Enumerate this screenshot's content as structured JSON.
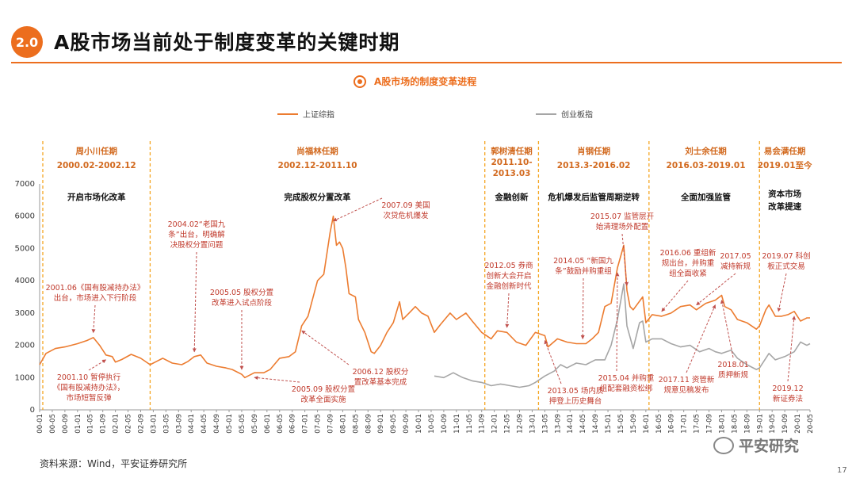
{
  "header": {
    "section_number": "2.0",
    "title": "A股市场当前处于制度变革的关键时期"
  },
  "subtitle": {
    "text": "A股市场的制度变革进程",
    "icon": "target-circle-icon"
  },
  "footer": {
    "source": "资料来源：Wind，平安证券研究所",
    "watermark": "平安研究",
    "watermark_icon": "wechat-icon",
    "page_number": "17"
  },
  "colors": {
    "accent": "#EC6E1E",
    "sse": "#EC7C30",
    "chinext": "#A6A6A6",
    "divider": "#F5A623"
  },
  "chart_data": {
    "type": "line",
    "ylim": [
      0,
      7000
    ],
    "yticks": [
      0,
      1000,
      2000,
      3000,
      4000,
      5000,
      6000,
      7000
    ],
    "x_range": [
      "2000-01",
      "2020-05"
    ],
    "xtick_labels": [
      "00-01",
      "00-05",
      "00-09",
      "01-01",
      "01-05",
      "01-09",
      "02-01",
      "02-05",
      "02-09",
      "03-01",
      "03-05",
      "03-09",
      "04-01",
      "04-05",
      "04-09",
      "05-01",
      "05-05",
      "05-09",
      "06-01",
      "06-05",
      "06-09",
      "07-01",
      "07-05",
      "07-09",
      "08-01",
      "08-05",
      "08-09",
      "09-01",
      "09-05",
      "09-09",
      "10-01",
      "10-05",
      "10-09",
      "11-01",
      "11-05",
      "11-09",
      "12-01",
      "12-05",
      "12-09",
      "13-01",
      "13-05",
      "13-09",
      "14-01",
      "14-05",
      "14-09",
      "15-01",
      "15-05",
      "15-09",
      "16-01",
      "16-05",
      "16-09",
      "17-01",
      "17-05",
      "17-09",
      "18-01",
      "18-05",
      "18-09",
      "19-01",
      "19-05",
      "19-09",
      "20-01",
      "20-05"
    ],
    "series": [
      {
        "name": "上证综指",
        "color": "#EC7C30",
        "points": [
          [
            "2000-01",
            1400
          ],
          [
            "2000-03",
            1750
          ],
          [
            "2000-06",
            1900
          ],
          [
            "2000-09",
            1950
          ],
          [
            "2001-01",
            2050
          ],
          [
            "2001-04",
            2150
          ],
          [
            "2001-06",
            2240
          ],
          [
            "2001-08",
            2000
          ],
          [
            "2001-10",
            1700
          ],
          [
            "2001-12",
            1650
          ],
          [
            "2002-01",
            1480
          ],
          [
            "2002-03",
            1560
          ],
          [
            "2002-06",
            1720
          ],
          [
            "2002-09",
            1600
          ],
          [
            "2002-12",
            1400
          ],
          [
            "2003-02",
            1500
          ],
          [
            "2003-04",
            1600
          ],
          [
            "2003-07",
            1450
          ],
          [
            "2003-10",
            1400
          ],
          [
            "2003-12",
            1500
          ],
          [
            "2004-02",
            1650
          ],
          [
            "2004-04",
            1700
          ],
          [
            "2004-06",
            1450
          ],
          [
            "2004-09",
            1350
          ],
          [
            "2004-12",
            1300
          ],
          [
            "2005-02",
            1250
          ],
          [
            "2005-05",
            1100
          ],
          [
            "2005-06",
            1000
          ],
          [
            "2005-09",
            1150
          ],
          [
            "2005-12",
            1150
          ],
          [
            "2006-02",
            1250
          ],
          [
            "2006-05",
            1600
          ],
          [
            "2006-08",
            1650
          ],
          [
            "2006-10",
            1800
          ],
          [
            "2006-12",
            2600
          ],
          [
            "2007-02",
            2900
          ],
          [
            "2007-05",
            4000
          ],
          [
            "2007-07",
            4200
          ],
          [
            "2007-09",
            5500
          ],
          [
            "2007-10",
            6000
          ],
          [
            "2007-11",
            5100
          ],
          [
            "2007-12",
            5200
          ],
          [
            "2008-01",
            5000
          ],
          [
            "2008-02",
            4400
          ],
          [
            "2008-03",
            3600
          ],
          [
            "2008-05",
            3500
          ],
          [
            "2008-06",
            2800
          ],
          [
            "2008-08",
            2400
          ],
          [
            "2008-10",
            1800
          ],
          [
            "2008-11",
            1750
          ],
          [
            "2009-01",
            2000
          ],
          [
            "2009-03",
            2400
          ],
          [
            "2009-05",
            2700
          ],
          [
            "2009-07",
            3350
          ],
          [
            "2009-08",
            2800
          ],
          [
            "2009-10",
            3000
          ],
          [
            "2009-12",
            3200
          ],
          [
            "2010-02",
            3000
          ],
          [
            "2010-04",
            2900
          ],
          [
            "2010-06",
            2400
          ],
          [
            "2010-08",
            2650
          ],
          [
            "2010-11",
            3000
          ],
          [
            "2011-01",
            2800
          ],
          [
            "2011-04",
            3000
          ],
          [
            "2011-06",
            2750
          ],
          [
            "2011-09",
            2400
          ],
          [
            "2011-12",
            2200
          ],
          [
            "2012-02",
            2450
          ],
          [
            "2012-05",
            2400
          ],
          [
            "2012-08",
            2100
          ],
          [
            "2012-11",
            2000
          ],
          [
            "2013-02",
            2400
          ],
          [
            "2013-05",
            2300
          ],
          [
            "2013-06",
            1950
          ],
          [
            "2013-09",
            2200
          ],
          [
            "2013-12",
            2100
          ],
          [
            "2014-03",
            2050
          ],
          [
            "2014-06",
            2050
          ],
          [
            "2014-08",
            2200
          ],
          [
            "2014-10",
            2400
          ],
          [
            "2014-12",
            3200
          ],
          [
            "2015-02",
            3300
          ],
          [
            "2015-04",
            4400
          ],
          [
            "2015-06",
            5100
          ],
          [
            "2015-07",
            3700
          ],
          [
            "2015-08",
            3200
          ],
          [
            "2015-09",
            3100
          ],
          [
            "2015-12",
            3500
          ],
          [
            "2016-01",
            2700
          ],
          [
            "2016-03",
            2950
          ],
          [
            "2016-06",
            2900
          ],
          [
            "2016-09",
            3000
          ],
          [
            "2016-12",
            3200
          ],
          [
            "2017-03",
            3250
          ],
          [
            "2017-05",
            3100
          ],
          [
            "2017-08",
            3300
          ],
          [
            "2017-11",
            3400
          ],
          [
            "2018-01",
            3550
          ],
          [
            "2018-02",
            3200
          ],
          [
            "2018-04",
            3100
          ],
          [
            "2018-06",
            2800
          ],
          [
            "2018-09",
            2700
          ],
          [
            "2018-12",
            2500
          ],
          [
            "2019-01",
            2600
          ],
          [
            "2019-03",
            3100
          ],
          [
            "2019-04",
            3250
          ],
          [
            "2019-06",
            2900
          ],
          [
            "2019-08",
            2900
          ],
          [
            "2019-10",
            2950
          ],
          [
            "2019-12",
            3050
          ],
          [
            "2020-02",
            2750
          ],
          [
            "2020-04",
            2850
          ],
          [
            "2020-05",
            2850
          ]
        ]
      },
      {
        "name": "创业板指",
        "color": "#A6A6A6",
        "points": [
          [
            "2010-06",
            1050
          ],
          [
            "2010-09",
            1000
          ],
          [
            "2010-12",
            1150
          ],
          [
            "2011-03",
            1000
          ],
          [
            "2011-06",
            900
          ],
          [
            "2011-09",
            850
          ],
          [
            "2011-12",
            750
          ],
          [
            "2012-03",
            800
          ],
          [
            "2012-06",
            750
          ],
          [
            "2012-09",
            700
          ],
          [
            "2012-12",
            750
          ],
          [
            "2013-02",
            850
          ],
          [
            "2013-05",
            1050
          ],
          [
            "2013-08",
            1200
          ],
          [
            "2013-10",
            1400
          ],
          [
            "2013-12",
            1300
          ],
          [
            "2014-03",
            1450
          ],
          [
            "2014-06",
            1400
          ],
          [
            "2014-09",
            1550
          ],
          [
            "2014-12",
            1550
          ],
          [
            "2015-02",
            2000
          ],
          [
            "2015-04",
            2800
          ],
          [
            "2015-06",
            3900
          ],
          [
            "2015-07",
            2600
          ],
          [
            "2015-09",
            1900
          ],
          [
            "2015-11",
            2700
          ],
          [
            "2015-12",
            2750
          ],
          [
            "2016-01",
            2100
          ],
          [
            "2016-03",
            2200
          ],
          [
            "2016-06",
            2200
          ],
          [
            "2016-09",
            2050
          ],
          [
            "2016-12",
            1950
          ],
          [
            "2017-03",
            2000
          ],
          [
            "2017-06",
            1800
          ],
          [
            "2017-09",
            1900
          ],
          [
            "2017-11",
            1800
          ],
          [
            "2018-01",
            1750
          ],
          [
            "2018-04",
            1850
          ],
          [
            "2018-06",
            1600
          ],
          [
            "2018-09",
            1400
          ],
          [
            "2018-12",
            1250
          ],
          [
            "2019-01",
            1300
          ],
          [
            "2019-04",
            1750
          ],
          [
            "2019-06",
            1550
          ],
          [
            "2019-09",
            1650
          ],
          [
            "2019-12",
            1800
          ],
          [
            "2020-02",
            2100
          ],
          [
            "2020-04",
            2000
          ],
          [
            "2020-05",
            2050
          ]
        ]
      }
    ],
    "eras": [
      {
        "start": "2000-02",
        "end": "2002-12",
        "chair": "周小川任期",
        "period": "2000.02-2002.12",
        "theme": "开启市场化改革"
      },
      {
        "start": "2002-12",
        "end": "2011-10",
        "chair": "尚福林任期",
        "period": "2002.12-2011.10",
        "theme": "完成股权分置改革"
      },
      {
        "start": "2011-10",
        "end": "2013-03",
        "chair": "郭树清任期",
        "period": "2011.10-2013.03",
        "theme": "金融创新"
      },
      {
        "start": "2013-03",
        "end": "2016-02",
        "chair": "肖钢任期",
        "period": "2013.3-2016.02",
        "theme": "危机爆发后监管周期逆转"
      },
      {
        "start": "2016-03",
        "end": "2019-01",
        "chair": "刘士余任期",
        "period": "2016.03-2019.01",
        "theme": "全面加强监管"
      },
      {
        "start": "2019-01",
        "end": "2020-05",
        "chair": "易会满任期",
        "period": "2019.01至今",
        "theme": "资本市场改革提速"
      }
    ],
    "annotations": [
      {
        "text": "2001.06《国有股减持办法》出台，市场进入下行阶段",
        "target": [
          "2001-06",
          2240
        ]
      },
      {
        "text": "2001.10 暂停执行《国有股减持办法》，市场短暂反弹",
        "target": [
          "2001-10",
          1700
        ]
      },
      {
        "text": "2004.02“老国九条”出台，明确解决股权分置问题",
        "target": [
          "2004-02",
          1650
        ]
      },
      {
        "text": "2005.05 股权分置改革进入试点阶段",
        "target": [
          "2005-05",
          1100
        ]
      },
      {
        "text": "2005.09 股权分置改革全面实施",
        "target": [
          "2005-09",
          1150
        ]
      },
      {
        "text": "2006.12 股权分置改革基本完成",
        "target": [
          "2006-12",
          2600
        ]
      },
      {
        "text": "2007.09 美国次贷危机爆发",
        "target": [
          "2007-10",
          6000
        ]
      },
      {
        "text": "2012.05 券商创新大会开启金融创新时代",
        "target": [
          "2012-05",
          2400
        ]
      },
      {
        "text": "2013.05 场内质押登上历史舞台",
        "target": [
          "2013-05",
          2300
        ]
      },
      {
        "text": "2014.05“新国九条”鼓励并购重组",
        "target": [
          "2014-05",
          2050
        ]
      },
      {
        "text": "2015.04 并购重组配套融资松绑",
        "target": [
          "2015-04",
          4400
        ]
      },
      {
        "text": "2015.07 监管层开始清理场外配置",
        "target": [
          "2015-07",
          3700
        ]
      },
      {
        "text": "2016.06 重组新规出台，并购重组全面收紧",
        "target": [
          "2016-06",
          2900
        ]
      },
      {
        "text": "2017.05 减持新规",
        "target": [
          "2017-05",
          3100
        ]
      },
      {
        "text": "2017.11 资管新规意见稿发布",
        "target": [
          "2017-11",
          3400
        ]
      },
      {
        "text": "2018.01 质押新规",
        "target": [
          "2018-01",
          3550
        ]
      },
      {
        "text": "2019.07 科创板正式交易",
        "target": [
          "2019-07",
          2900
        ]
      },
      {
        "text": "2019.12 新证券法",
        "target": [
          "2019-12",
          3050
        ]
      }
    ]
  }
}
